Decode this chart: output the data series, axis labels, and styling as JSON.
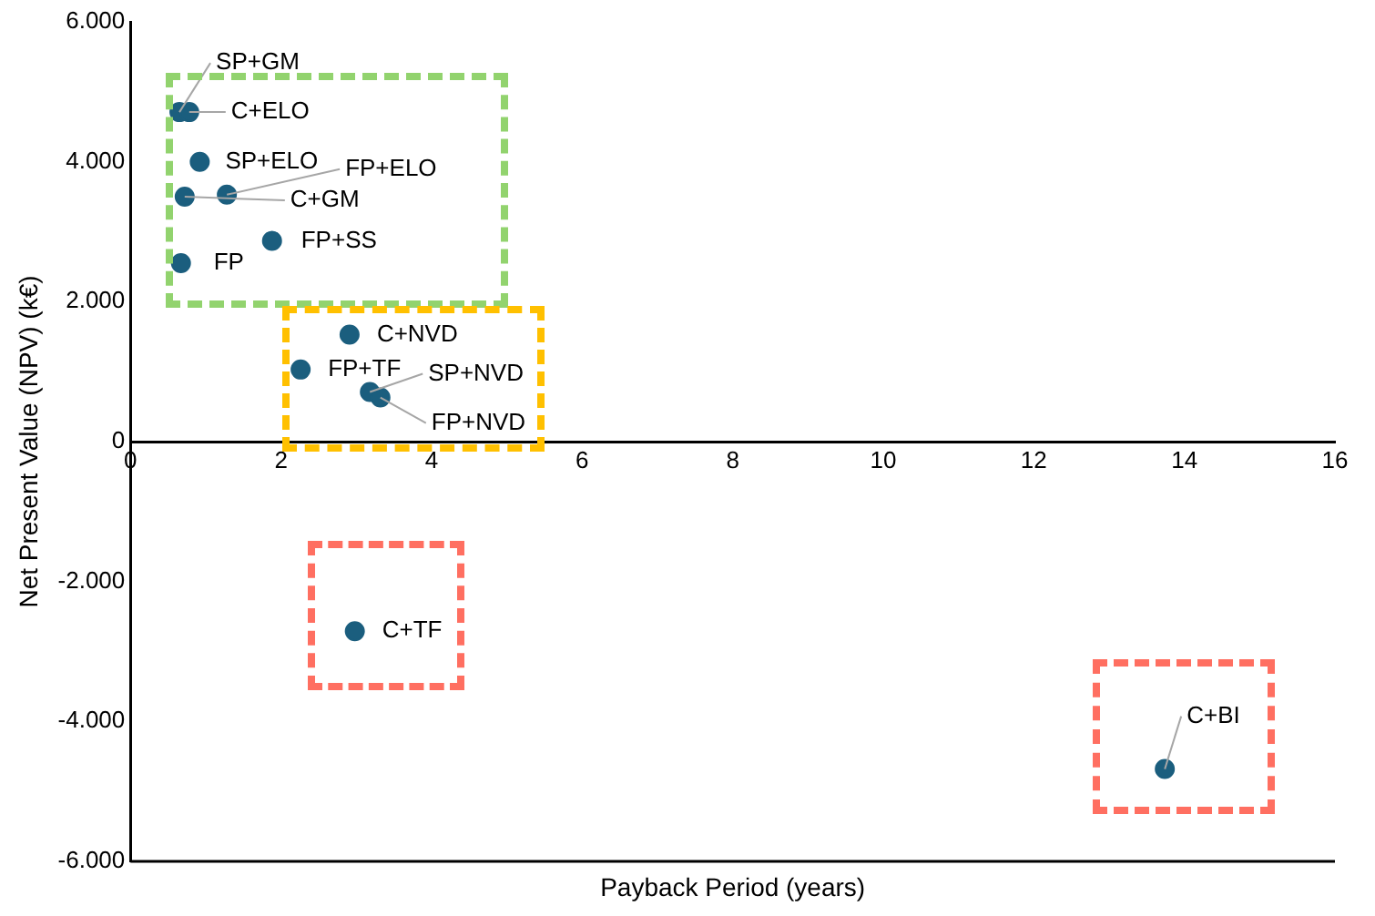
{
  "chart_data": {
    "type": "scatter",
    "xlabel": "Payback Period (years)",
    "ylabel": "Net Present Value (NPV) (k€)",
    "x": [
      0.65,
      0.78,
      0.92,
      1.28,
      0.72,
      1.88,
      0.67,
      2.91,
      2.26,
      3.18,
      3.32,
      2.98,
      13.74
    ],
    "series": [
      {
        "color": "#1b5e7e",
        "values": [
          4710,
          4710,
          4000,
          3530,
          3500,
          2870,
          2550,
          1530,
          1030,
          710,
          630,
          -2710,
          -4680
        ]
      }
    ],
    "annotations": [
      {
        "text": "SP+GM",
        "x": 0.65,
        "y": 4710
      },
      {
        "text": "C+ELO",
        "x": 0.78,
        "y": 4710
      },
      {
        "text": "SP+ELO",
        "x": 0.92,
        "y": 4000
      },
      {
        "text": "FP+ELO",
        "x": 1.28,
        "y": 3530
      },
      {
        "text": "C+GM",
        "x": 0.72,
        "y": 3500
      },
      {
        "text": "FP+SS",
        "x": 1.88,
        "y": 2870
      },
      {
        "text": "FP",
        "x": 0.67,
        "y": 2550
      },
      {
        "text": "C+NVD",
        "x": 2.91,
        "y": 1530
      },
      {
        "text": "FP+TF",
        "x": 2.26,
        "y": 1030
      },
      {
        "text": "SP+NVD",
        "x": 3.18,
        "y": 710
      },
      {
        "text": "FP+NVD",
        "x": 3.32,
        "y": 630
      },
      {
        "text": "C+TF",
        "x": 2.98,
        "y": -2710
      },
      {
        "text": "C+BI",
        "x": 13.74,
        "y": -4680
      }
    ],
    "xlim": [
      0,
      16
    ],
    "xticks": [
      0,
      2,
      4,
      6,
      8,
      10,
      12,
      14,
      16
    ],
    "ylim": [
      -6000,
      6000
    ],
    "yticks": [
      {
        "value": -6000,
        "label": "-6.000"
      },
      {
        "value": -4000,
        "label": "-4.000"
      },
      {
        "value": -2000,
        "label": "-2.000"
      },
      {
        "value": 0,
        "label": "0"
      },
      {
        "value": 2000,
        "label": "2.000"
      },
      {
        "value": 4000,
        "label": "4.000"
      },
      {
        "value": 6000,
        "label": "6.000"
      }
    ],
    "grid": false,
    "legend": false,
    "marker": "circle"
  }
}
